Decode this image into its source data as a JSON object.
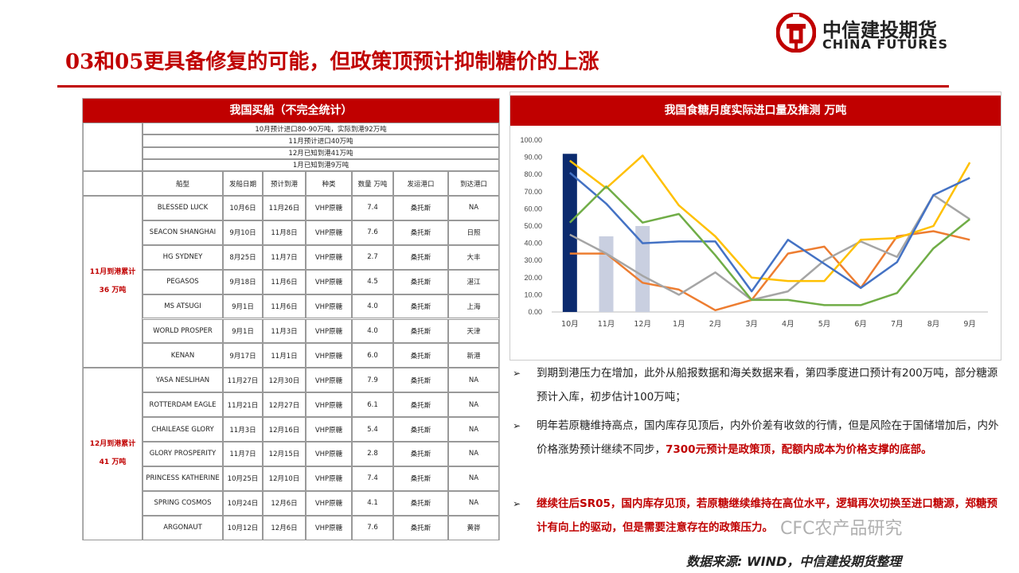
{
  "title": "03和05更具备修复的可能，但政策顶预计抑制糖价的上涨",
  "logo": {
    "cn": "中信建投期货",
    "en": "CHINA FUTURES"
  },
  "table": {
    "title": "我国买船（不完全统计）",
    "notes": [
      "10月预计进口80-90万吨，实际到港92万吨",
      "11月预计进口40万吨",
      "12月已知到港41万吨",
      "1月已知到港9万吨"
    ],
    "headers": [
      "船型",
      "发船日期",
      "预计到港",
      "种类",
      "数量 万吨",
      "发运港口",
      "到达港口"
    ],
    "groups": [
      {
        "label": "11月到港累计",
        "value": "36 万吨",
        "rows": [
          [
            "BLESSED LUCK",
            "10月6日",
            "11月26日",
            "VHP原糖",
            "7.4",
            "桑托斯",
            "NA"
          ],
          [
            "SEACON SHANGHAI",
            "9月10日",
            "11月8日",
            "VHP原糖",
            "7.6",
            "桑托斯",
            "日照"
          ],
          [
            "HG SYDNEY",
            "8月25日",
            "11月7日",
            "VHP原糖",
            "2.7",
            "桑托斯",
            "大丰"
          ],
          [
            "PEGASOS",
            "9月18日",
            "11月6日",
            "VHP原糖",
            "4.5",
            "桑托斯",
            "湛江"
          ],
          [
            "MS ATSUGI",
            "9月1日",
            "11月6日",
            "VHP原糖",
            "4.0",
            "桑托斯",
            "上海"
          ],
          [
            "WORLD PROSPER",
            "9月1日",
            "11月3日",
            "VHP原糖",
            "4.0",
            "桑托斯",
            "天津"
          ],
          [
            "KENAN",
            "9月17日",
            "11月1日",
            "VHP原糖",
            "6.0",
            "桑托斯",
            "新港"
          ]
        ]
      },
      {
        "label": "12月到港累计",
        "value": "41 万吨",
        "rows": [
          [
            "YASA NESLIHAN",
            "11月27日",
            "12月30日",
            "VHP原糖",
            "7.9",
            "桑托斯",
            "NA"
          ],
          [
            "ROTTERDAM EAGLE",
            "11月21日",
            "12月27日",
            "VHP原糖",
            "6.1",
            "桑托斯",
            "NA"
          ],
          [
            "CHAILEASE GLORY",
            "11月3日",
            "12月16日",
            "VHP原糖",
            "5.4",
            "桑托斯",
            "NA"
          ],
          [
            "GLORY PROSPERITY",
            "11月7日",
            "12月15日",
            "VHP原糖",
            "2.8",
            "桑托斯",
            "NA"
          ],
          [
            "PRINCESS KATHERINE",
            "10月25日",
            "12月10日",
            "VHP原糖",
            "7.4",
            "桑托斯",
            "NA"
          ],
          [
            "SPRING COSMOS",
            "10月24日",
            "12月6日",
            "VHP原糖",
            "4.1",
            "桑托斯",
            "NA"
          ],
          [
            "ARGONAUT",
            "10月12日",
            "12月6日",
            "VHP原糖",
            "7.6",
            "桑托斯",
            "黄骅"
          ]
        ]
      }
    ]
  },
  "chart_data": {
    "type": "line",
    "title": "我国食糖月度实际进口量及推测 万吨",
    "categories": [
      "10月",
      "11月",
      "12月",
      "1月",
      "2月",
      "3月",
      "4月",
      "5月",
      "6月",
      "7月",
      "8月",
      "9月"
    ],
    "ylim": [
      0,
      100
    ],
    "yticks": [
      "0.00",
      "10.00",
      "20.00",
      "30.00",
      "40.00",
      "50.00",
      "60.00",
      "70.00",
      "80.00",
      "90.00",
      "100.00"
    ],
    "legend_position": "top",
    "bars": {
      "color_first": "#0b2a6e",
      "color_rest": "#c9cfe0",
      "values": [
        92,
        44,
        50
      ]
    },
    "series": [
      {
        "color": "#ed7d31",
        "values": [
          34,
          34,
          17,
          13,
          1,
          7,
          34,
          38,
          14,
          44,
          47,
          42
        ]
      },
      {
        "color": "#a5a5a5",
        "values": [
          45,
          34,
          21,
          10,
          23,
          7,
          12,
          30,
          41,
          32,
          68,
          54
        ]
      },
      {
        "color": "#ffc000",
        "values": [
          88,
          72,
          91,
          62,
          44,
          20,
          18,
          18,
          42,
          43,
          50,
          87
        ]
      },
      {
        "color": "#4472c4",
        "values": [
          81,
          63,
          40,
          41,
          41,
          12,
          42,
          28,
          14,
          29,
          68,
          78
        ]
      },
      {
        "color": "#70ad47",
        "values": [
          52,
          73,
          52,
          57,
          33,
          7,
          7,
          4,
          4,
          11,
          37,
          54
        ]
      }
    ]
  },
  "bullets": [
    {
      "marker": "➢",
      "segments": [
        {
          "t": "到期到港压力在增加，此外从船报数据和海关数据来看，第四季度进口预计有200万吨，部分糖源预计入库，初步估计100万吨；",
          "red": false
        }
      ]
    },
    {
      "marker": "➢",
      "segments": [
        {
          "t": "明年若原糖维持高点，国内库存见顶后，内外价差有收敛的行情，但是风险在于国储增加后，内外价格涨势预计继续不同步，",
          "red": false
        },
        {
          "t": "7300元预计是政策顶，配额内成本为价格支撑的底部。",
          "red": true
        }
      ]
    },
    {
      "marker": "➢",
      "segments": [
        {
          "t": "继续往后SR05，国内库存见顶，若原糖继续维持在高位水平，逻辑再次切换至进口糖源，郑糖预计有向上的驱动，但是需要注意存在的政策压力。",
          "red": true
        }
      ]
    }
  ],
  "source": "数据来源: WIND，中信建投期货整理",
  "watermark": "CFC农产品研究"
}
